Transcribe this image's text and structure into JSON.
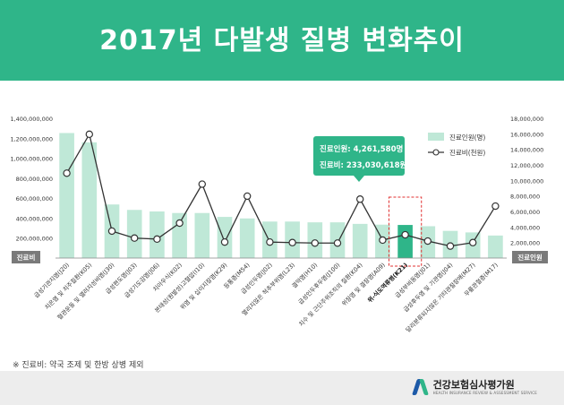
{
  "title": "2017년 다발생 질병 변화추이",
  "footnote": "※ 진료비: 약국 조제 및 한방 상병 제외",
  "org": {
    "name": "건강보험심사평가원",
    "sub": "HEALTH INSURANCE REVIEW & ASSESSMENT SERVICE"
  },
  "colors": {
    "header": "#2fb589",
    "bar": "#bfe8d7",
    "bar_highlight": "#2fb589",
    "line": "#333333",
    "callout": "#2fb589",
    "dashed_box": "#e03030"
  },
  "chart_data": {
    "type": "bar",
    "categories": [
      "급성기관지염(J20)",
      "치은염 및 치주질환(K05)",
      "혈관운동 및 앨러지성비염(J30)",
      "급성편도염(J03)",
      "급성기도감염(J06)",
      "치아우식(K02)",
      "본태성(원발성)고혈압(I10)",
      "위염 및 십이지장염(K29)",
      "등통증(M54)",
      "급성인두염(J02)",
      "열리지않은 척추부위염(L23)",
      "결막염(H10)",
      "급성인두후두염(J100)",
      "치수 및 근단주위조직의 질환(K04)",
      "위장염 및 결장염(A09)",
      "위-식도역류병(K21)",
      "급성부비동염(J01)",
      "급성후두염 및 기관염(J04)",
      "달리분류되지않은 기타관절장애(M27)",
      "무릎관절증(M17)"
    ],
    "series": [
      {
        "name": "진료인원(명)",
        "type": "bar",
        "axis": "right",
        "values": [
          16100000,
          14900000,
          6900000,
          6200000,
          6000000,
          5800000,
          5800000,
          5300000,
          5100000,
          4700000,
          4700000,
          4600000,
          4600000,
          4400000,
          4300000,
          4261580,
          4100000,
          3500000,
          3300000,
          2900000
        ]
      },
      {
        "name": "진료비(천원)",
        "type": "line",
        "axis": "left",
        "values": [
          850000000,
          1240000000,
          270000000,
          200000000,
          190000000,
          350000000,
          740000000,
          160000000,
          620000000,
          160000000,
          155000000,
          150000000,
          150000000,
          590000000,
          180000000,
          233030618,
          170000000,
          120000000,
          155000000,
          520000000
        ]
      }
    ],
    "y_left": {
      "label": "진료비",
      "min": 0,
      "max": 1400000000,
      "step": 200000000,
      "ticks": [
        "200,000,000",
        "400,000,000",
        "600,000,000",
        "800,000,000",
        "1,000,000,000",
        "1,200,000,000",
        "1,400,000,000"
      ]
    },
    "y_right": {
      "label": "진료인원",
      "min": 0,
      "max": 18000000,
      "step": 2000000,
      "ticks": [
        "2,000,000",
        "4,000,000",
        "6,000,000",
        "8,000,000",
        "10,000,000",
        "12,000,000",
        "14,000,000",
        "16,000,000",
        "18,000,000"
      ]
    },
    "highlight_index": 15,
    "annotation": {
      "line1": "진료인원: 4,261,580명",
      "line2": "진료비: 233,030,618원"
    },
    "legend_position": "top-right",
    "grid": false
  }
}
